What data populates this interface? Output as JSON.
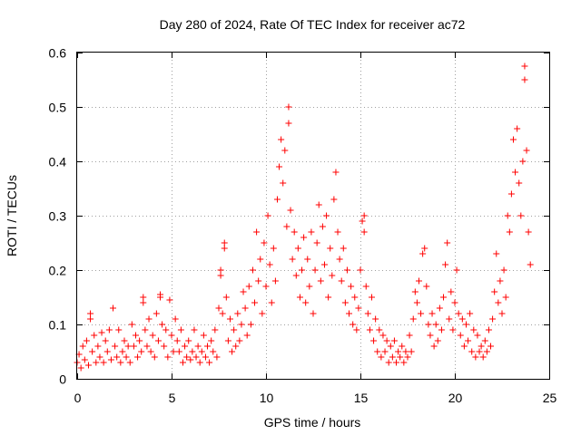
{
  "colors": {
    "series": "#ff0000",
    "grid": "#a0a0a0",
    "axis": "#000000",
    "background": "#ffffff"
  },
  "chart_data": {
    "type": "scatter",
    "title": "Day 280 of 2024, Rate Of TEC Index for receiver ac72",
    "xlabel": "GPS time / hours",
    "ylabel": "ROTI / TECUs",
    "xlim": [
      0,
      25
    ],
    "ylim": [
      0,
      0.6
    ],
    "xticks": [
      "0",
      "5",
      "10",
      "15",
      "20",
      "25"
    ],
    "yticks": [
      "0",
      "0.1",
      "0.2",
      "0.3",
      "0.4",
      "0.5",
      "0.6"
    ],
    "grid": true,
    "marker": "plus",
    "series": [
      {
        "points": [
          [
            0.0,
            0.03
          ],
          [
            0.1,
            0.045
          ],
          [
            0.2,
            0.02
          ],
          [
            0.3,
            0.06
          ],
          [
            0.4,
            0.035
          ],
          [
            0.5,
            0.07
          ],
          [
            0.6,
            0.025
          ],
          [
            0.7,
            0.12
          ],
          [
            0.7,
            0.11
          ],
          [
            0.8,
            0.05
          ],
          [
            0.9,
            0.08
          ],
          [
            1.0,
            0.03
          ],
          [
            1.1,
            0.06
          ],
          [
            1.2,
            0.04
          ],
          [
            1.3,
            0.085
          ],
          [
            1.4,
            0.03
          ],
          [
            1.5,
            0.07
          ],
          [
            1.6,
            0.05
          ],
          [
            1.7,
            0.09
          ],
          [
            1.8,
            0.035
          ],
          [
            1.9,
            0.13
          ],
          [
            2.0,
            0.06
          ],
          [
            2.1,
            0.04
          ],
          [
            2.2,
            0.09
          ],
          [
            2.3,
            0.03
          ],
          [
            2.4,
            0.05
          ],
          [
            2.5,
            0.07
          ],
          [
            2.6,
            0.04
          ],
          [
            2.7,
            0.06
          ],
          [
            2.8,
            0.03
          ],
          [
            2.9,
            0.1
          ],
          [
            3.0,
            0.06
          ],
          [
            3.1,
            0.08
          ],
          [
            3.2,
            0.04
          ],
          [
            3.3,
            0.07
          ],
          [
            3.4,
            0.05
          ],
          [
            3.5,
            0.15
          ],
          [
            3.5,
            0.14
          ],
          [
            3.6,
            0.09
          ],
          [
            3.7,
            0.06
          ],
          [
            3.8,
            0.11
          ],
          [
            3.9,
            0.05
          ],
          [
            4.0,
            0.08
          ],
          [
            4.1,
            0.04
          ],
          [
            4.2,
            0.12
          ],
          [
            4.3,
            0.07
          ],
          [
            4.4,
            0.155
          ],
          [
            4.4,
            0.15
          ],
          [
            4.5,
            0.1
          ],
          [
            4.6,
            0.06
          ],
          [
            4.7,
            0.09
          ],
          [
            4.8,
            0.04
          ],
          [
            4.9,
            0.145
          ],
          [
            5.0,
            0.08
          ],
          [
            5.1,
            0.05
          ],
          [
            5.2,
            0.11
          ],
          [
            5.3,
            0.07
          ],
          [
            5.4,
            0.05
          ],
          [
            5.5,
            0.09
          ],
          [
            5.6,
            0.03
          ],
          [
            5.7,
            0.06
          ],
          [
            5.8,
            0.04
          ],
          [
            5.9,
            0.07
          ],
          [
            6.0,
            0.035
          ],
          [
            6.1,
            0.05
          ],
          [
            6.2,
            0.09
          ],
          [
            6.3,
            0.04
          ],
          [
            6.4,
            0.06
          ],
          [
            6.5,
            0.03
          ],
          [
            6.6,
            0.05
          ],
          [
            6.7,
            0.08
          ],
          [
            6.8,
            0.04
          ],
          [
            6.9,
            0.06
          ],
          [
            7.0,
            0.03
          ],
          [
            7.1,
            0.07
          ],
          [
            7.2,
            0.05
          ],
          [
            7.3,
            0.09
          ],
          [
            7.4,
            0.04
          ],
          [
            7.5,
            0.13
          ],
          [
            7.6,
            0.2
          ],
          [
            7.6,
            0.19
          ],
          [
            7.7,
            0.12
          ],
          [
            7.8,
            0.25
          ],
          [
            7.8,
            0.24
          ],
          [
            7.9,
            0.15
          ],
          [
            8.0,
            0.07
          ],
          [
            8.1,
            0.11
          ],
          [
            8.2,
            0.05
          ],
          [
            8.3,
            0.09
          ],
          [
            8.4,
            0.06
          ],
          [
            8.5,
            0.12
          ],
          [
            8.6,
            0.07
          ],
          [
            8.7,
            0.1
          ],
          [
            8.8,
            0.16
          ],
          [
            8.9,
            0.13
          ],
          [
            9.0,
            0.08
          ],
          [
            9.1,
            0.17
          ],
          [
            9.2,
            0.1
          ],
          [
            9.3,
            0.2
          ],
          [
            9.4,
            0.14
          ],
          [
            9.5,
            0.27
          ],
          [
            9.6,
            0.18
          ],
          [
            9.7,
            0.22
          ],
          [
            9.8,
            0.12
          ],
          [
            9.9,
            0.25
          ],
          [
            10.0,
            0.17
          ],
          [
            10.1,
            0.3
          ],
          [
            10.2,
            0.21
          ],
          [
            10.3,
            0.14
          ],
          [
            10.4,
            0.24
          ],
          [
            10.5,
            0.18
          ],
          [
            10.6,
            0.33
          ],
          [
            10.7,
            0.39
          ],
          [
            10.8,
            0.44
          ],
          [
            10.9,
            0.36
          ],
          [
            11.0,
            0.42
          ],
          [
            11.1,
            0.28
          ],
          [
            11.2,
            0.47
          ],
          [
            11.2,
            0.5
          ],
          [
            11.3,
            0.31
          ],
          [
            11.4,
            0.22
          ],
          [
            11.5,
            0.27
          ],
          [
            11.6,
            0.19
          ],
          [
            11.7,
            0.24
          ],
          [
            11.8,
            0.15
          ],
          [
            11.9,
            0.2
          ],
          [
            12.0,
            0.26
          ],
          [
            12.1,
            0.14
          ],
          [
            12.2,
            0.22
          ],
          [
            12.3,
            0.17
          ],
          [
            12.4,
            0.27
          ],
          [
            12.5,
            0.12
          ],
          [
            12.6,
            0.2
          ],
          [
            12.7,
            0.25
          ],
          [
            12.8,
            0.32
          ],
          [
            12.9,
            0.18
          ],
          [
            13.0,
            0.28
          ],
          [
            13.1,
            0.21
          ],
          [
            13.2,
            0.3
          ],
          [
            13.3,
            0.15
          ],
          [
            13.4,
            0.24
          ],
          [
            13.5,
            0.19
          ],
          [
            13.6,
            0.33
          ],
          [
            13.7,
            0.38
          ],
          [
            13.8,
            0.27
          ],
          [
            13.9,
            0.22
          ],
          [
            14.0,
            0.18
          ],
          [
            14.1,
            0.24
          ],
          [
            14.2,
            0.14
          ],
          [
            14.3,
            0.2
          ],
          [
            14.4,
            0.12
          ],
          [
            14.5,
            0.17
          ],
          [
            14.6,
            0.1
          ],
          [
            14.7,
            0.15
          ],
          [
            14.8,
            0.09
          ],
          [
            14.9,
            0.13
          ],
          [
            15.0,
            0.2
          ],
          [
            15.1,
            0.29
          ],
          [
            15.2,
            0.27
          ],
          [
            15.2,
            0.3
          ],
          [
            15.3,
            0.17
          ],
          [
            15.4,
            0.12
          ],
          [
            15.5,
            0.09
          ],
          [
            15.6,
            0.15
          ],
          [
            15.7,
            0.07
          ],
          [
            15.8,
            0.11
          ],
          [
            15.9,
            0.05
          ],
          [
            16.0,
            0.09
          ],
          [
            16.1,
            0.04
          ],
          [
            16.2,
            0.08
          ],
          [
            16.3,
            0.05
          ],
          [
            16.4,
            0.07
          ],
          [
            16.5,
            0.03
          ],
          [
            16.6,
            0.06
          ],
          [
            16.7,
            0.04
          ],
          [
            16.8,
            0.07
          ],
          [
            16.9,
            0.03
          ],
          [
            17.0,
            0.05
          ],
          [
            17.1,
            0.04
          ],
          [
            17.2,
            0.06
          ],
          [
            17.3,
            0.03
          ],
          [
            17.4,
            0.05
          ],
          [
            17.5,
            0.04
          ],
          [
            17.6,
            0.08
          ],
          [
            17.7,
            0.05
          ],
          [
            17.8,
            0.11
          ],
          [
            17.9,
            0.16
          ],
          [
            18.0,
            0.14
          ],
          [
            18.1,
            0.18
          ],
          [
            18.2,
            0.12
          ],
          [
            18.3,
            0.23
          ],
          [
            18.4,
            0.24
          ],
          [
            18.5,
            0.17
          ],
          [
            18.6,
            0.1
          ],
          [
            18.7,
            0.08
          ],
          [
            18.8,
            0.12
          ],
          [
            18.9,
            0.06
          ],
          [
            19.0,
            0.1
          ],
          [
            19.1,
            0.07
          ],
          [
            19.2,
            0.13
          ],
          [
            19.3,
            0.09
          ],
          [
            19.4,
            0.15
          ],
          [
            19.5,
            0.21
          ],
          [
            19.6,
            0.25
          ],
          [
            19.7,
            0.11
          ],
          [
            19.8,
            0.16
          ],
          [
            19.9,
            0.09
          ],
          [
            20.0,
            0.14
          ],
          [
            20.1,
            0.2
          ],
          [
            20.2,
            0.12
          ],
          [
            20.3,
            0.08
          ],
          [
            20.4,
            0.11
          ],
          [
            20.5,
            0.06
          ],
          [
            20.6,
            0.1
          ],
          [
            20.7,
            0.07
          ],
          [
            20.8,
            0.12
          ],
          [
            20.9,
            0.05
          ],
          [
            21.0,
            0.09
          ],
          [
            21.1,
            0.04
          ],
          [
            21.2,
            0.08
          ],
          [
            21.3,
            0.05
          ],
          [
            21.4,
            0.06
          ],
          [
            21.5,
            0.04
          ],
          [
            21.6,
            0.07
          ],
          [
            21.7,
            0.05
          ],
          [
            21.8,
            0.09
          ],
          [
            21.9,
            0.06
          ],
          [
            22.0,
            0.11
          ],
          [
            22.1,
            0.16
          ],
          [
            22.2,
            0.23
          ],
          [
            22.3,
            0.14
          ],
          [
            22.4,
            0.18
          ],
          [
            22.5,
            0.12
          ],
          [
            22.6,
            0.2
          ],
          [
            22.7,
            0.15
          ],
          [
            22.8,
            0.3
          ],
          [
            22.9,
            0.27
          ],
          [
            23.0,
            0.34
          ],
          [
            23.1,
            0.44
          ],
          [
            23.2,
            0.38
          ],
          [
            23.3,
            0.46
          ],
          [
            23.4,
            0.36
          ],
          [
            23.5,
            0.3
          ],
          [
            23.6,
            0.4
          ],
          [
            23.7,
            0.55
          ],
          [
            23.7,
            0.575
          ],
          [
            23.8,
            0.42
          ],
          [
            23.9,
            0.27
          ],
          [
            24.0,
            0.21
          ]
        ]
      }
    ]
  }
}
